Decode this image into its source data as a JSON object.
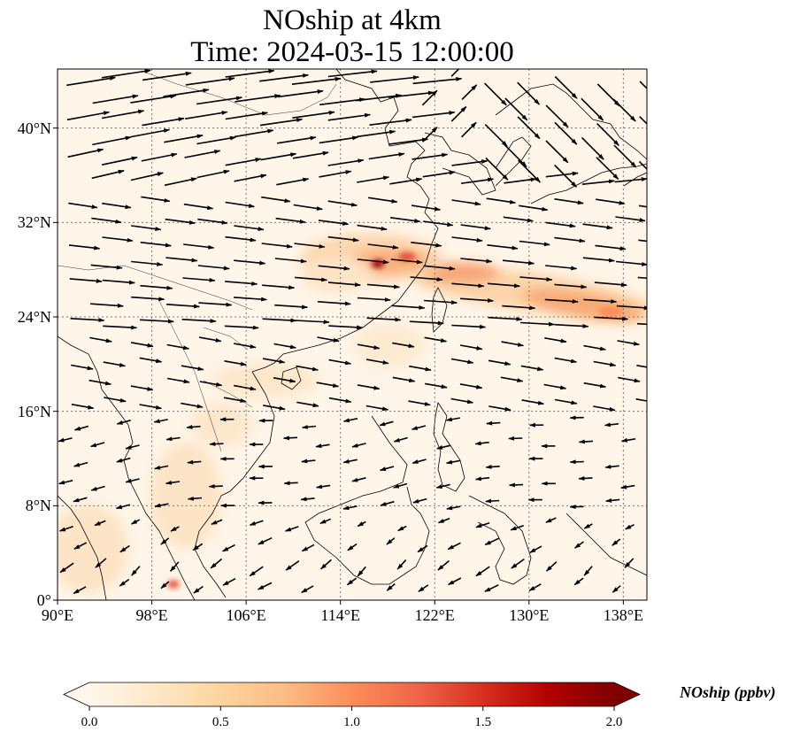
{
  "title": {
    "line1": "NOship at 4km",
    "line2": "Time: 2024-03-15 12:00:00"
  },
  "map": {
    "lon_range": [
      90,
      140
    ],
    "lat_range": [
      0,
      45
    ],
    "lat_ticks": [
      {
        "value": 0,
        "label": "0°"
      },
      {
        "value": 8,
        "label": "8°N"
      },
      {
        "value": 16,
        "label": "16°N"
      },
      {
        "value": 24,
        "label": "24°N"
      },
      {
        "value": 32,
        "label": "32°N"
      },
      {
        "value": 40,
        "label": "40°N"
      }
    ],
    "lon_ticks": [
      {
        "value": 90,
        "label": "90°E"
      },
      {
        "value": 98,
        "label": "98°E"
      },
      {
        "value": 106,
        "label": "106°E"
      },
      {
        "value": 114,
        "label": "114°E"
      },
      {
        "value": 122,
        "label": "122°E"
      },
      {
        "value": 130,
        "label": "130°E"
      },
      {
        "value": 138,
        "label": "138°E"
      }
    ],
    "gridlines": true
  },
  "colorbar": {
    "label": "NOship (ppbv)",
    "min": 0.0,
    "max": 2.0,
    "colormap": "OrRd",
    "colors": [
      "#fff7ec",
      "#fee8c8",
      "#fdd49e",
      "#fdbb84",
      "#fc8d59",
      "#ef6548",
      "#d7301f",
      "#b30000",
      "#7f0000"
    ],
    "ticks": [
      {
        "value": 0.0,
        "label": "0.0"
      },
      {
        "value": 0.5,
        "label": "0.5"
      },
      {
        "value": 1.0,
        "label": "1.0"
      },
      {
        "value": 1.5,
        "label": "1.5"
      },
      {
        "value": 2.0,
        "label": "2.0"
      }
    ]
  }
}
